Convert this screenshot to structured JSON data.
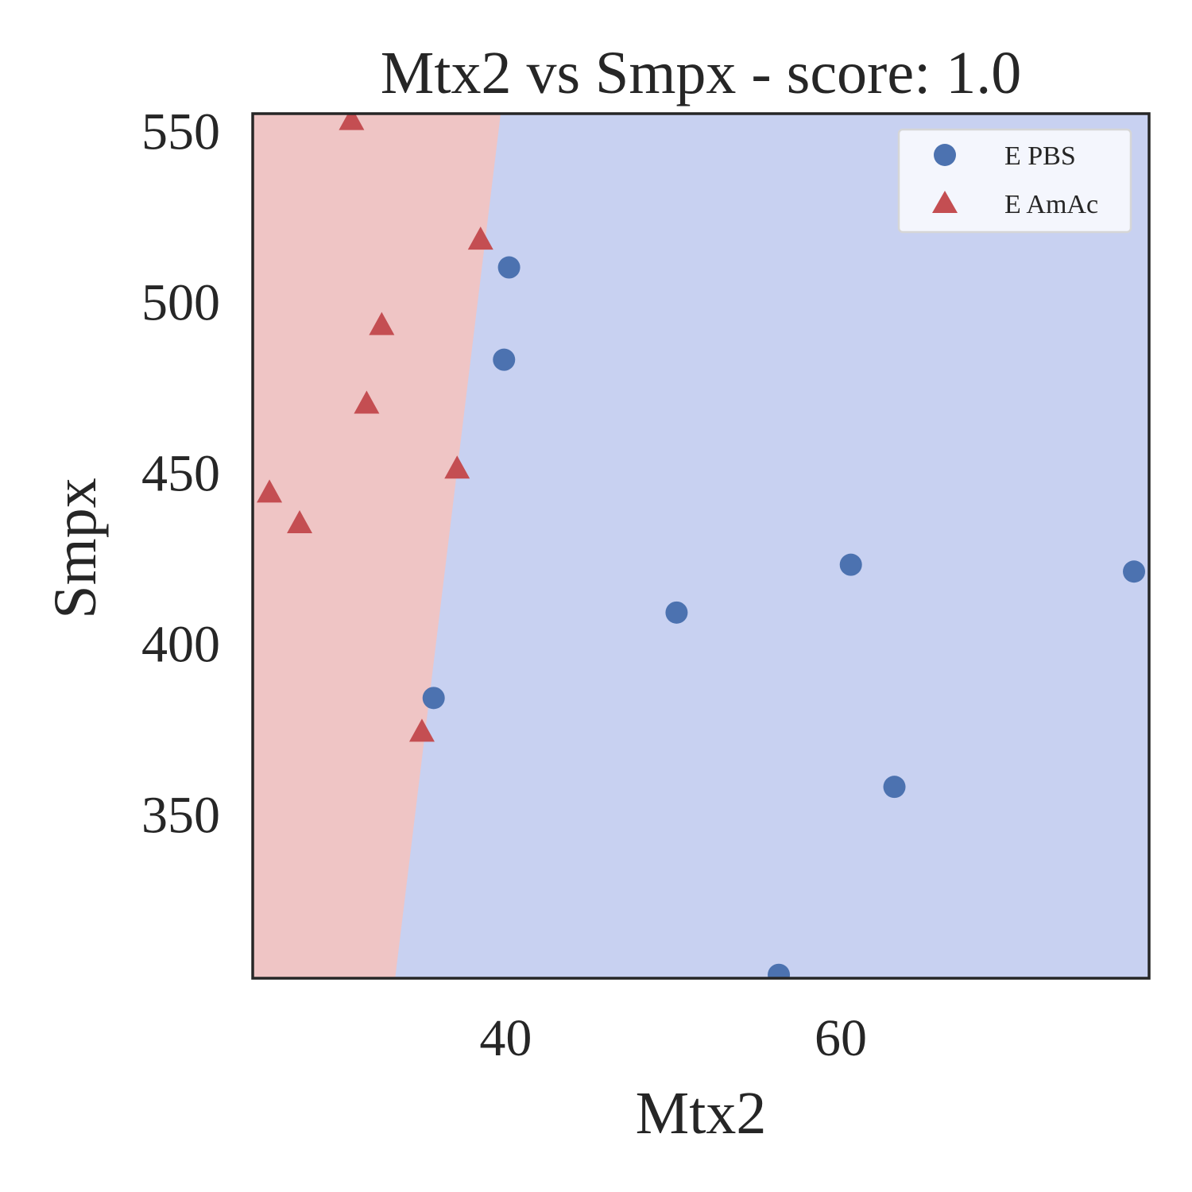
{
  "chart_data": {
    "type": "scatter",
    "title": "Mtx2 vs Smpx - score: 1.0",
    "xlabel": "Mtx2",
    "ylabel": "Smpx",
    "xlim": [
      24.9,
      78.4
    ],
    "ylim": [
      302,
      555
    ],
    "xticks": [
      40,
      60
    ],
    "yticks": [
      350,
      400,
      450,
      500,
      550
    ],
    "grid": false,
    "legend_position": "top-right",
    "decision_boundary": {
      "points": [
        [
          33.4,
          302
        ],
        [
          39.7,
          555
        ]
      ],
      "left_region_color": "#efc5c5",
      "right_region_color": "#c8d1f1"
    },
    "series": [
      {
        "name": "E PBS",
        "marker": "circle",
        "color": "#4c72b0",
        "points": [
          [
            40.2,
            510
          ],
          [
            39.9,
            483
          ],
          [
            35.7,
            384
          ],
          [
            50.2,
            409
          ],
          [
            60.6,
            423
          ],
          [
            63.2,
            358
          ],
          [
            56.3,
            303
          ],
          [
            77.5,
            421
          ]
        ]
      },
      {
        "name": "E AmAc",
        "marker": "triangle",
        "color": "#c44e52",
        "points": [
          [
            30.8,
            553
          ],
          [
            38.5,
            518
          ],
          [
            32.6,
            493
          ],
          [
            31.7,
            470
          ],
          [
            37.1,
            451
          ],
          [
            25.9,
            444
          ],
          [
            27.7,
            435
          ],
          [
            35.0,
            374
          ]
        ]
      }
    ]
  }
}
